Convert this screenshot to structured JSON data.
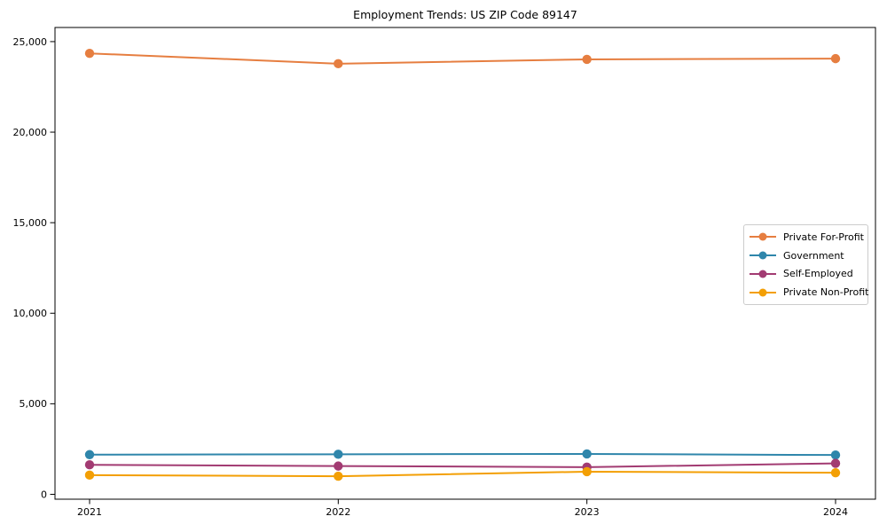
{
  "chart_data": {
    "type": "line",
    "title": "Employment Trends: US ZIP Code 89147",
    "xlabel": "",
    "ylabel": "",
    "categories": [
      "2021",
      "2022",
      "2023",
      "2024"
    ],
    "x": [
      2021,
      2022,
      2023,
      2024
    ],
    "series": [
      {
        "name": "Private For-Profit",
        "color": "#E67E40",
        "values": [
          24350,
          23780,
          24020,
          24060
        ]
      },
      {
        "name": "Government",
        "color": "#2F86AB",
        "values": [
          2190,
          2210,
          2230,
          2170
        ]
      },
      {
        "name": "Self-Employed",
        "color": "#A23B72",
        "values": [
          1630,
          1560,
          1500,
          1710
        ]
      },
      {
        "name": "Private Non-Profit",
        "color": "#F39F05",
        "values": [
          1060,
          1000,
          1250,
          1190
        ]
      }
    ],
    "y_ticks": {
      "values": [
        0,
        5000,
        10000,
        15000,
        20000,
        25000
      ],
      "labels": [
        "0",
        "5,000",
        "10,000",
        "15,000",
        "20,000",
        "25,000"
      ]
    },
    "ylim": [
      -270,
      25780
    ],
    "grid": false,
    "legend_position": "center-right",
    "marker": "circle",
    "axis_color": "#000000"
  }
}
